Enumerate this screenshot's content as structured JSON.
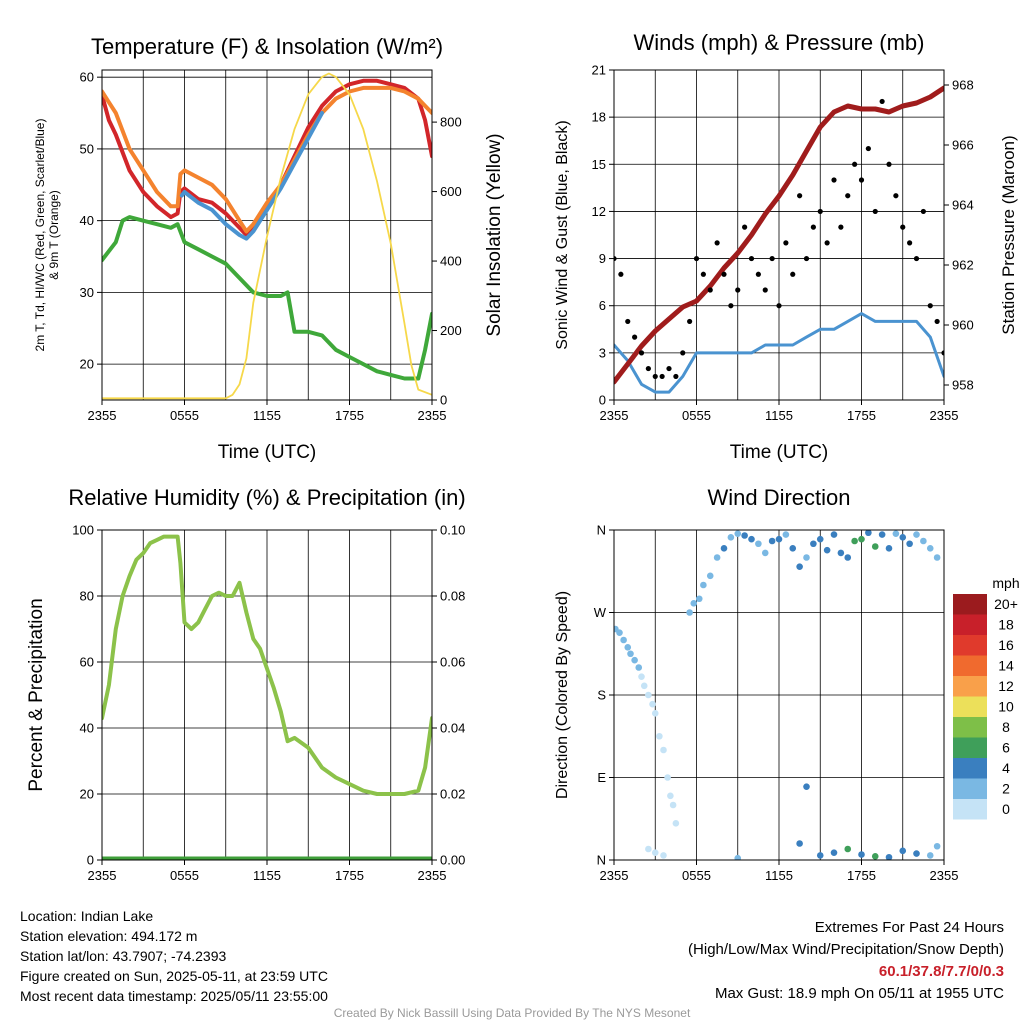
{
  "charts": {
    "temperature": {
      "title": "Temperature (F) & Insolation (W/m²)",
      "xlabel": "Time (UTC)",
      "ylabel_lines": [
        "2m T, Td, HI/WC (Red, Green, Scarlet/Blue)",
        "& 9m T (Orange)"
      ],
      "y2label": "Solar Insolation (Yellow)"
    },
    "winds": {
      "title": "Winds (mph) & Pressure (mb)",
      "xlabel": "Time (UTC)",
      "ylabel": "Sonic Wind & Gust (Blue, Black)",
      "y2label": "Station Pressure (Maroon)"
    },
    "humidity": {
      "title": "Relative Humidity (%) & Precipitation (in)",
      "ylabel": "Percent & Precipitation"
    },
    "direction": {
      "title": "Wind Direction",
      "ylabel": "Direction (Colored By Speed)",
      "legend_title": "mph"
    }
  },
  "info": {
    "location": "Location: Indian Lake",
    "elevation": "Station elevation: 494.172 m",
    "latlon": "Station lat/lon: 43.7907; -74.2393",
    "created": "Figure created on Sun, 2025-05-11, at 23:59 UTC",
    "recent": "Most recent data timestamp: 2025/05/11 23:55:00"
  },
  "extremes": {
    "title": "Extremes For Past 24 Hours",
    "subtitle": "(High/Low/Max Wind/Precipitation/Snow Depth)",
    "values": "60.1/37.8/7.7/0/0.3",
    "gust": "Max Gust: 18.9 mph On 05/11 at 1955 UTC"
  },
  "credit": "Created By Nick Bassill Using Data Provided By The NYS Mesonet",
  "colors": {
    "temp_2m": "#d2262a",
    "temp_9m": "#f4832e",
    "dewpoint": "#3fa83a",
    "heat_index_wind_chill": "#4a93d0",
    "solar": "#f6d84a",
    "wind": "#4a93d0",
    "gust": "#000000",
    "pressure": "#a01c1c",
    "rh": "#8cc24a",
    "precip": "#3f9f3a",
    "grid": "#000000"
  },
  "chart_data": [
    {
      "id": "temperature",
      "type": "line",
      "title": "Temperature (F) & Insolation (W/m²)",
      "xlabel": "Time (UTC)",
      "ylabel": "2m T, Td, HI/WC (Red, Green, Scarlet/Blue) & 9m T (Orange)",
      "y2label": "Solar Insolation (Yellow)",
      "x_ticks": [
        "2355",
        "0555",
        "1155",
        "1755",
        "2355"
      ],
      "x_range_hours": [
        0,
        24
      ],
      "ylim": [
        15,
        61
      ],
      "y_ticks": [
        20,
        30,
        40,
        50,
        60
      ],
      "y2lim": [
        0,
        950
      ],
      "y2_ticks": [
        0,
        200,
        400,
        600,
        800
      ],
      "grid": true,
      "series": [
        {
          "name": "2m T",
          "axis": "left",
          "color": "#d2262a",
          "x": [
            0,
            0.5,
            1,
            2,
            3,
            4,
            5,
            5.5,
            5.7,
            6,
            7,
            8,
            9,
            10,
            10.5,
            11,
            12,
            13,
            14,
            15,
            16,
            17,
            18,
            19,
            20,
            21,
            22,
            23,
            23.5,
            24
          ],
          "y": [
            57.5,
            54,
            52,
            47,
            44,
            42,
            40.5,
            41,
            44,
            44.5,
            43,
            42.5,
            41,
            39,
            38,
            39,
            42,
            45,
            49,
            53,
            56,
            58,
            59,
            59.5,
            59.5,
            59,
            58.5,
            57,
            54,
            49
          ]
        },
        {
          "name": "9m T",
          "axis": "left",
          "color": "#f4832e",
          "x": [
            0,
            0.5,
            1,
            2,
            3,
            4,
            5,
            5.5,
            5.7,
            6,
            7,
            8,
            9,
            10,
            10.5,
            11,
            12,
            13,
            14,
            15,
            16,
            17,
            18,
            19,
            20,
            21,
            22,
            23,
            23.5,
            24
          ],
          "y": [
            58,
            56.5,
            55,
            50,
            47,
            44,
            42,
            42,
            46.5,
            47,
            46,
            45,
            43,
            40,
            38.5,
            39.5,
            42.5,
            45,
            48.5,
            52,
            55,
            57,
            58,
            58.5,
            58.5,
            58.5,
            58,
            57,
            56,
            55
          ]
        },
        {
          "name": "HI/WC",
          "axis": "left",
          "color": "#4a93d0",
          "x": [
            5.8,
            6,
            7,
            8,
            9,
            10,
            10.5,
            11,
            12,
            13,
            14,
            15,
            16
          ],
          "y": [
            43.5,
            44,
            42.5,
            41.5,
            39.5,
            38,
            37.5,
            38.5,
            41.5,
            44.5,
            48,
            51.5,
            55
          ]
        },
        {
          "name": "Td",
          "axis": "left",
          "color": "#3fa83a",
          "x": [
            0,
            1,
            1.5,
            2,
            3,
            4,
            5,
            5.5,
            6,
            7,
            8,
            9,
            10,
            11,
            12,
            13,
            13.5,
            14,
            15,
            16,
            17,
            18,
            19,
            20,
            21,
            22,
            23,
            23.5,
            24
          ],
          "y": [
            34.5,
            37,
            40,
            40.5,
            40,
            39.5,
            39,
            39.5,
            37,
            36,
            35,
            34,
            32,
            30,
            29.5,
            29.5,
            30,
            24.5,
            24.5,
            24,
            22,
            21,
            20,
            19,
            18.5,
            18,
            18,
            22,
            27
          ]
        },
        {
          "name": "Solar Insolation",
          "axis": "right",
          "color": "#f6d84a",
          "x": [
            0,
            9,
            9.5,
            10,
            10.5,
            11,
            12,
            13,
            14,
            15,
            16,
            16.5,
            17,
            18,
            19,
            20,
            21,
            22,
            22.5,
            23,
            24
          ],
          "y": [
            5,
            5,
            15,
            45,
            120,
            280,
            470,
            640,
            780,
            880,
            930,
            940,
            930,
            880,
            780,
            630,
            450,
            220,
            100,
            30,
            15
          ]
        }
      ]
    },
    {
      "id": "winds",
      "type": "line",
      "title": "Winds (mph) & Pressure (mb)",
      "xlabel": "Time (UTC)",
      "ylabel": "Sonic Wind & Gust (Blue, Black)",
      "y2label": "Station Pressure (Maroon)",
      "x_ticks": [
        "2355",
        "0555",
        "1155",
        "1755",
        "2355"
      ],
      "x_range_hours": [
        0,
        24
      ],
      "ylim": [
        0,
        21
      ],
      "y_ticks": [
        0,
        3,
        6,
        9,
        12,
        15,
        18,
        21
      ],
      "y2lim": [
        957.5,
        968.5
      ],
      "y2_ticks": [
        958,
        960,
        962,
        964,
        966,
        968
      ],
      "grid": true,
      "series": [
        {
          "name": "Sonic Wind",
          "axis": "left",
          "color": "#4a93d0",
          "x": [
            0,
            1,
            2,
            3,
            4,
            5,
            6,
            7,
            8,
            9,
            10,
            11,
            12,
            13,
            14,
            15,
            16,
            17,
            18,
            19,
            20,
            21,
            22,
            23,
            24
          ],
          "y": [
            3.5,
            2.5,
            1.0,
            0.5,
            0.5,
            1.5,
            3.0,
            3.0,
            3.0,
            3.0,
            3.0,
            3.5,
            3.5,
            3.5,
            4.0,
            4.5,
            4.5,
            5.0,
            5.5,
            5.0,
            5.0,
            5.0,
            5.0,
            4.0,
            1.5
          ]
        },
        {
          "name": "Station Pressure",
          "axis": "right",
          "color": "#a01c1c",
          "x": [
            0,
            1,
            2,
            3,
            4,
            5,
            6,
            7,
            8,
            9,
            10,
            11,
            12,
            13,
            14,
            15,
            16,
            17,
            18,
            19,
            20,
            21,
            22,
            23,
            24
          ],
          "y": [
            958.1,
            958.7,
            959.3,
            959.8,
            960.2,
            960.6,
            960.8,
            961.3,
            961.9,
            962.4,
            963.0,
            963.7,
            964.3,
            965.0,
            965.8,
            966.6,
            967.1,
            967.3,
            967.2,
            967.2,
            967.1,
            967.3,
            967.4,
            967.6,
            967.9
          ]
        },
        {
          "name": "Gust",
          "axis": "left",
          "color": "#000000",
          "type": "scatter",
          "x": [
            0,
            0.5,
            1,
            1.5,
            2,
            2.5,
            3,
            3.5,
            4,
            4.5,
            5,
            5.5,
            6,
            6.5,
            7,
            7.5,
            8,
            8.5,
            9,
            9.5,
            10,
            10.5,
            11,
            11.5,
            12,
            12.5,
            13,
            13.5,
            14,
            14.5,
            15,
            15.5,
            16,
            16.5,
            17,
            17.5,
            18,
            18.5,
            19,
            19.5,
            20,
            20.5,
            21,
            21.5,
            22,
            22.5,
            23,
            23.5,
            24
          ],
          "y": [
            9,
            8,
            5,
            4,
            3,
            2,
            1.5,
            1.5,
            2,
            1.5,
            3,
            5,
            9,
            8,
            7,
            10,
            8,
            6,
            7,
            11,
            9,
            8,
            7,
            9,
            6,
            10,
            8,
            13,
            9,
            11,
            12,
            10,
            14,
            11,
            13,
            15,
            14,
            16,
            12,
            19,
            15,
            13,
            11,
            10,
            9,
            12,
            6,
            5,
            3
          ]
        }
      ]
    },
    {
      "id": "humidity",
      "type": "line",
      "title": "Relative Humidity (%) & Precipitation (in)",
      "ylabel": "Percent & Precipitation",
      "x_ticks": [
        "2355",
        "0555",
        "1155",
        "1755",
        "2355"
      ],
      "x_range_hours": [
        0,
        24
      ],
      "ylim": [
        0,
        100
      ],
      "y_ticks": [
        0,
        20,
        40,
        60,
        80,
        100
      ],
      "y2lim": [
        0,
        0.1
      ],
      "y2_ticks": [
        "0.00",
        "0.02",
        "0.04",
        "0.06",
        "0.08",
        "0.10"
      ],
      "grid": true,
      "series": [
        {
          "name": "Relative Humidity",
          "axis": "left",
          "color": "#8cc24a",
          "x": [
            0,
            0.5,
            1,
            1.5,
            2,
            2.5,
            3,
            3.5,
            4,
            4.5,
            5,
            5.5,
            5.7,
            6,
            6.5,
            7,
            7.5,
            8,
            8.5,
            9,
            9.5,
            10,
            10.5,
            11,
            11.5,
            12,
            12.5,
            13,
            13.5,
            14,
            15,
            16,
            17,
            18,
            19,
            20,
            21,
            22,
            23,
            23.5,
            24
          ],
          "y": [
            43,
            53,
            70,
            80,
            86,
            91,
            93,
            96,
            97,
            98,
            98,
            98,
            90,
            72,
            70,
            72,
            76,
            80,
            81,
            80,
            80,
            84,
            75,
            67,
            64,
            58,
            52,
            45,
            36,
            37,
            34,
            28,
            25,
            23,
            21,
            20,
            20,
            20,
            21,
            28,
            43
          ]
        },
        {
          "name": "Precipitation",
          "axis": "right",
          "color": "#3f9f3a",
          "x": [
            0,
            24
          ],
          "y": [
            0,
            0
          ]
        }
      ]
    },
    {
      "id": "direction",
      "type": "scatter",
      "title": "Wind Direction",
      "ylabel": "Direction (Colored By Speed)",
      "x_ticks": [
        "2355",
        "0555",
        "1155",
        "1755",
        "2355"
      ],
      "x_range_hours": [
        0,
        24
      ],
      "y_ticks": [
        "N",
        "E",
        "S",
        "W",
        "N"
      ],
      "ylim_degrees": [
        0,
        360
      ],
      "grid": true,
      "legend": {
        "title": "mph",
        "labels": [
          "20+",
          "18",
          "16",
          "14",
          "12",
          "10",
          "8",
          "6",
          "4",
          "2",
          "0"
        ],
        "colors": [
          "#9b1b1e",
          "#c8202a",
          "#e03a2c",
          "#f06a2e",
          "#f9a04a",
          "#ece05a",
          "#7ebf48",
          "#3f9f5a",
          "#3a7fbf",
          "#7ab8e3",
          "#c5e3f6"
        ],
        "placement": "right"
      },
      "points": {
        "x": [
          0.1,
          0.4,
          0.7,
          1.0,
          1.2,
          1.5,
          1.8,
          2.0,
          2.2,
          2.5,
          2.8,
          3.0,
          3.3,
          3.6,
          3.9,
          4.1,
          4.3,
          4.5,
          5.5,
          5.8,
          6.2,
          6.5,
          7.0,
          7.5,
          8.0,
          8.5,
          9.0,
          9.5,
          10.0,
          10.5,
          11.0,
          11.5,
          12.0,
          12.5,
          13.0,
          13.5,
          14.0,
          14.5,
          15.0,
          15.5,
          16.0,
          16.5,
          17.0,
          17.5,
          18.0,
          18.5,
          19.0,
          19.5,
          20.0,
          20.5,
          21.0,
          21.5,
          22.0,
          22.5,
          23.0,
          23.5,
          2.5,
          3.0,
          3.6,
          9.0,
          13.5,
          14.0,
          15.0,
          16.0,
          17.0,
          18.0,
          19.0,
          20.0,
          21.0,
          22.0,
          23.0,
          23.5
        ],
        "y": [
          252,
          248,
          240,
          232,
          225,
          218,
          210,
          200,
          190,
          180,
          170,
          160,
          135,
          120,
          90,
          70,
          60,
          40,
          270,
          280,
          285,
          300,
          310,
          330,
          340,
          352,
          356,
          354,
          350,
          345,
          335,
          348,
          350,
          355,
          340,
          320,
          330,
          345,
          350,
          338,
          355,
          335,
          330,
          348,
          350,
          357,
          342,
          355,
          340,
          356,
          352,
          345,
          355,
          348,
          340,
          330,
          12,
          8,
          5,
          2,
          18,
          80,
          5,
          8,
          12,
          6,
          4,
          3,
          10,
          7,
          5,
          15
        ],
        "speed_mph": [
          2,
          2,
          3,
          2,
          3,
          2,
          2,
          1,
          1,
          1,
          1,
          1,
          1,
          1,
          1,
          1,
          0,
          0,
          2,
          2,
          3,
          3,
          3,
          3,
          4,
          3,
          3,
          4,
          4,
          3,
          3,
          4,
          4,
          3,
          4,
          4,
          3,
          4,
          4,
          4,
          5,
          4,
          4,
          6,
          7,
          4,
          6,
          4,
          4,
          3,
          4,
          5,
          3,
          3,
          2,
          2,
          1,
          1,
          1,
          3,
          4,
          4,
          5,
          4,
          6,
          5,
          6,
          4,
          5,
          4,
          3,
          2
        ]
      }
    }
  ]
}
